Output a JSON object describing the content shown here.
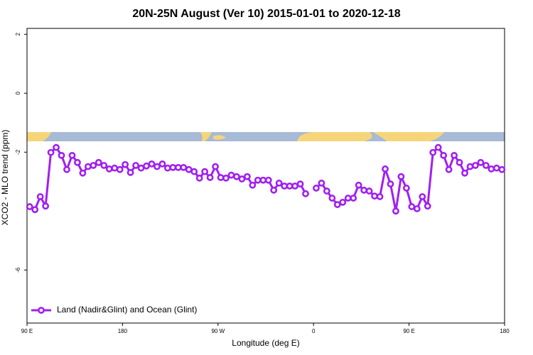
{
  "chart_data": {
    "type": "line",
    "title": "20N-25N August (Ver 10)   2015-01-01 to 2020-12-18",
    "x_label": "Longitude (deg E)",
    "y_label": "XCO2 - MLO trend (ppm)",
    "xlim": [
      90,
      540
    ],
    "ylim": [
      -7.8,
      2.2
    ],
    "xticks": [
      {
        "value": 90,
        "label": "90 E"
      },
      180,
      {
        "value": 270,
        "label": "90 W"
      },
      {
        "value": 360,
        "label": "0"
      },
      {
        "value": 450,
        "label": "90 E"
      },
      {
        "value": 540,
        "label": "180"
      }
    ],
    "yticks": [
      -6,
      -2,
      0,
      2
    ],
    "legend": "bottom-left",
    "x": [
      92.5,
      97.5,
      102.5,
      107.5,
      112.5,
      117.5,
      122.5,
      127.5,
      132.5,
      137.5,
      142.5,
      147.5,
      152.5,
      157.5,
      162.5,
      167.5,
      172.5,
      177.5,
      182.5,
      187.5,
      192.5,
      197.5,
      202.5,
      207.5,
      212.5,
      217.5,
      222.5,
      227.5,
      232.5,
      237.5,
      242.5,
      247.5,
      252.5,
      257.5,
      262.5,
      267.5,
      272.5,
      277.5,
      282.5,
      287.5,
      292.5,
      297.5,
      302.5,
      307.5,
      312.5,
      317.5,
      322.5,
      327.5,
      332.5,
      337.5,
      342.5,
      347.5,
      352.5,
      357.5,
      362.5,
      367.5,
      372.5,
      377.5,
      382.5,
      387.5,
      392.5,
      397.5,
      402.5,
      407.5,
      412.5,
      417.5,
      422.5,
      427.5,
      432.5,
      437.5,
      442.5,
      447.5,
      452.5,
      457.5,
      462.5,
      467.5,
      472.5,
      477.5,
      482.5,
      487.5,
      492.5,
      497.5,
      502.5,
      507.5,
      512.5,
      517.5,
      522.5,
      527.5,
      532.5,
      537.5
    ],
    "series": [
      {
        "name": "Land (Nadir&Glint) and Ocean (Glint)",
        "color": "#a020f0",
        "values": [
          -3.85,
          -3.95,
          -3.51,
          -3.83,
          -2.01,
          -1.84,
          -2.11,
          -2.59,
          -2.11,
          -2.35,
          -2.71,
          -2.49,
          -2.45,
          -2.35,
          -2.45,
          -2.57,
          -2.54,
          -2.59,
          -2.42,
          -2.69,
          -2.45,
          -2.54,
          -2.47,
          -2.4,
          -2.49,
          -2.4,
          -2.54,
          -2.52,
          -2.52,
          -2.52,
          -2.59,
          -2.66,
          -2.88,
          -2.66,
          -2.86,
          -2.49,
          -2.86,
          -2.88,
          -2.78,
          -2.83,
          -2.91,
          -2.83,
          -3.12,
          -2.95,
          -2.95,
          -2.95,
          -3.29,
          -3.05,
          -3.15,
          -3.15,
          -3.15,
          -3.08,
          -3.41,
          null,
          -3.22,
          -3.05,
          -3.32,
          -3.56,
          -3.78,
          -3.7,
          -3.56,
          -3.56,
          -3.12,
          -3.29,
          -3.32,
          -3.49,
          -3.51,
          -2.57,
          -3.08,
          -4.0,
          -2.83,
          -3.22,
          -3.85,
          -3.92,
          -3.51,
          -3.83,
          -2.01,
          -1.84,
          -2.11,
          -2.59,
          -2.11,
          -2.35,
          -2.71,
          -2.49,
          -2.45,
          -2.35,
          -2.45,
          -2.57,
          -2.54,
          -2.59
        ]
      }
    ]
  }
}
